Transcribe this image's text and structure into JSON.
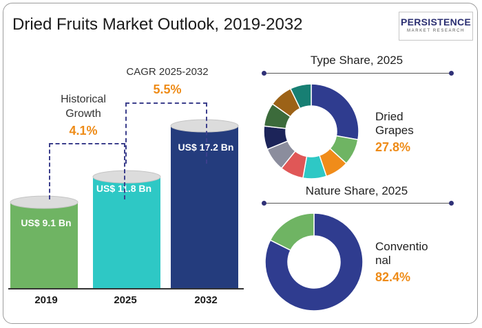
{
  "title": "Dried Fruits Market Outlook, 2019-2032",
  "logo": {
    "main": "PERSISTENCE",
    "sub": "MARKET RESEARCH"
  },
  "colors": {
    "bar_2019": "#6fb463",
    "bar_2025": "#2ec8c5",
    "bar_2032": "#243c7d",
    "accent": "#ee8b17",
    "navy": "#2f3177"
  },
  "chart_data": [
    {
      "type": "bar",
      "categories": [
        "2019",
        "2025",
        "2032"
      ],
      "values": [
        9.1,
        11.8,
        17.2
      ],
      "value_labels": [
        "US$ 9.1 Bn",
        "US$ 11.8 Bn",
        "US$ 17.2 Bn"
      ],
      "annotations": [
        {
          "label": "Historical Growth",
          "value": "4.1%"
        },
        {
          "label": "CAGR 2025-2032",
          "value": "5.5%"
        }
      ]
    },
    {
      "type": "pie",
      "title": "Type Share, 2025",
      "highlight": {
        "label": "Dried Grapes",
        "value": "27.8%"
      },
      "slices": [
        {
          "value": 27.8,
          "color": "#2f3c8f"
        },
        {
          "value": 9,
          "color": "#6fb463"
        },
        {
          "value": 8,
          "color": "#f08c1a"
        },
        {
          "value": 8,
          "color": "#2ec8c5"
        },
        {
          "value": 8,
          "color": "#e05757"
        },
        {
          "value": 8,
          "color": "#8b8d9d"
        },
        {
          "value": 8,
          "color": "#1c2459"
        },
        {
          "value": 8,
          "color": "#3c6b3b"
        },
        {
          "value": 8,
          "color": "#9c6217"
        },
        {
          "value": 7.2,
          "color": "#177f73"
        }
      ]
    },
    {
      "type": "pie",
      "title": "Nature Share, 2025",
      "highlight": {
        "label": "Conventional",
        "value": "82.4%"
      },
      "slices": [
        {
          "value": 82.4,
          "color": "#2f3c8f"
        },
        {
          "value": 17.6,
          "color": "#6fb463"
        }
      ]
    }
  ]
}
